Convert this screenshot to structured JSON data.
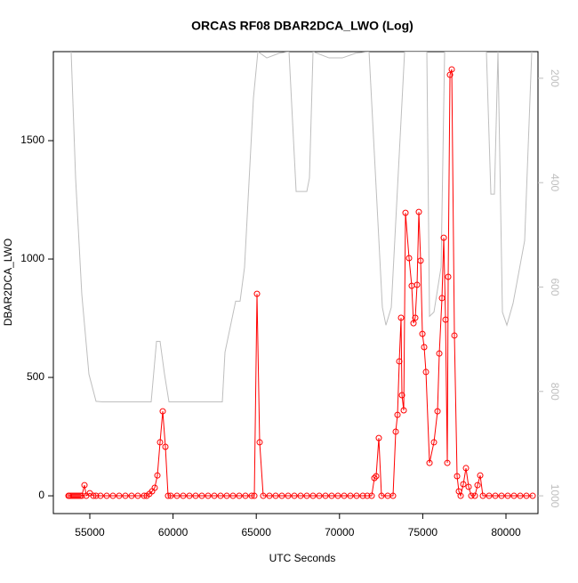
{
  "chart_data": {
    "type": "line",
    "title": "ORCAS RF08 DBAR2DCA_LWO (Log)",
    "xlabel": "UTC Seconds",
    "ylabel": "DBAR2DCA_LWO",
    "xlim": [
      52810,
      81923
    ],
    "xticks": [
      55000,
      60000,
      65000,
      70000,
      75000,
      80000
    ],
    "ylim": [
      -75,
      1876
    ],
    "yticks": [
      0,
      500,
      1000,
      1500
    ],
    "y2lim": [
      1034,
      149
    ],
    "y2ticks": [
      200,
      400,
      600,
      800,
      1000
    ],
    "series": [
      {
        "color": "#ff0000",
        "x": [
          53718,
          53772,
          53878,
          53985,
          54092,
          54199,
          54306,
          54413,
          54519,
          54680,
          54787,
          55000,
          55214,
          55374,
          55641,
          56015,
          56389,
          56763,
          57137,
          57511,
          57885,
          58259,
          58419,
          58579,
          58740,
          58900,
          59060,
          59220,
          59381,
          59541,
          59701,
          59861,
          60235,
          60609,
          60983,
          61357,
          61731,
          62105,
          62479,
          62853,
          63227,
          63601,
          63975,
          64349,
          64723,
          64883,
          65043,
          65203,
          65417,
          65791,
          66165,
          66539,
          66913,
          67287,
          67661,
          68035,
          68409,
          68783,
          69157,
          69531,
          69904,
          70278,
          70652,
          71026,
          71400,
          71667,
          71934,
          72095,
          72201,
          72361,
          72522,
          72896,
          73216,
          73377,
          73484,
          73591,
          73697,
          73751,
          73858,
          73964,
          74178,
          74338,
          74445,
          74552,
          74659,
          74766,
          74873,
          74980,
          75086,
          75193,
          75407,
          75674,
          75888,
          75995,
          76155,
          76262,
          76369,
          76476,
          76529,
          76636,
          76743,
          76903,
          77063,
          77170,
          77277,
          77437,
          77597,
          77757,
          77917,
          78131,
          78292,
          78452,
          78612,
          78986,
          79360,
          79734,
          80107,
          80481,
          80855,
          81229,
          81603
        ],
        "values": [
          0,
          0,
          0,
          0,
          0,
          0,
          0,
          0,
          0,
          45,
          0,
          11,
          0,
          0,
          0,
          0,
          0,
          0,
          0,
          0,
          0,
          0,
          0,
          8,
          19,
          34,
          86,
          226,
          357,
          207,
          0,
          0,
          0,
          0,
          0,
          0,
          0,
          0,
          0,
          0,
          0,
          0,
          0,
          0,
          0,
          0,
          853,
          226,
          0,
          0,
          0,
          0,
          0,
          0,
          0,
          0,
          0,
          0,
          0,
          0,
          0,
          0,
          0,
          0,
          0,
          0,
          0,
          75,
          83,
          244,
          0,
          0,
          0,
          271,
          342,
          568,
          752,
          425,
          361,
          1195,
          1004,
          887,
          729,
          752,
          891,
          1199,
          993,
          684,
          628,
          523,
          139,
          226,
          357,
          601,
          835,
          1090,
          744,
          139,
          925,
          1778,
          1801,
          677,
          83,
          19,
          0,
          49,
          117,
          38,
          0,
          0,
          45,
          86,
          0,
          0,
          0,
          0,
          0,
          0,
          0,
          0,
          0
        ]
      },
      {
        "color": "#bebebe",
        "axis": "y2",
        "x": [
          53878,
          54146,
          54519,
          54947,
          55374,
          55748,
          58686,
          59007,
          59220,
          59488,
          59755,
          62960,
          63120,
          63761,
          64028,
          64295,
          64829,
          65097,
          65631,
          66379,
          66966,
          67394,
          68035,
          68195,
          68409,
          69370,
          70172,
          70973,
          71774,
          72575,
          72789,
          73110,
          73911,
          75246,
          75407,
          75674,
          76101,
          76315,
          78825,
          79093,
          79306,
          79520,
          79787,
          80054,
          80428,
          81122,
          81550
        ],
        "values": [
          149,
          391,
          614,
          767,
          819,
          820,
          820,
          704,
          704,
          767,
          820,
          820,
          725,
          627,
          627,
          562,
          238,
          149,
          161,
          152,
          149,
          417,
          417,
          391,
          149,
          161,
          161,
          152,
          149,
          639,
          673,
          639,
          149,
          149,
          656,
          648,
          562,
          149,
          149,
          422,
          422,
          149,
          648,
          673,
          631,
          511,
          149
        ]
      }
    ]
  }
}
